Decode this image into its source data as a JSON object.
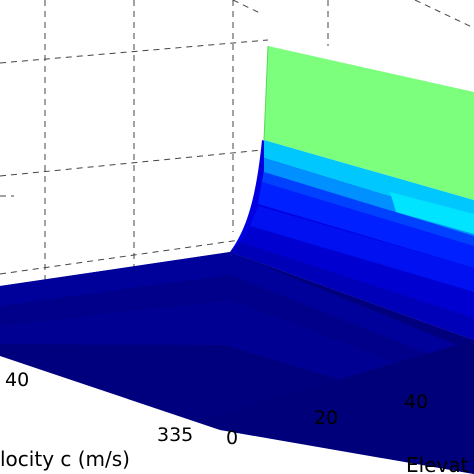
{
  "chart_data": {
    "type": "surface",
    "title": "",
    "xlabel": "locity c (m/s)",
    "ylabel": "Elevat",
    "zlabel": "",
    "x_ticks": [
      "335",
      "40"
    ],
    "y_ticks": [
      "0",
      "20",
      "40"
    ],
    "colormap": [
      "#00007f",
      "#0000c8",
      "#0000ff",
      "#0044ff",
      "#0090ff",
      "#00e4ff",
      "#7cff7c"
    ],
    "grid": true,
    "surface_shape": "low flat floor rising sharply to a high plateau at the far end of the elevation axis"
  }
}
